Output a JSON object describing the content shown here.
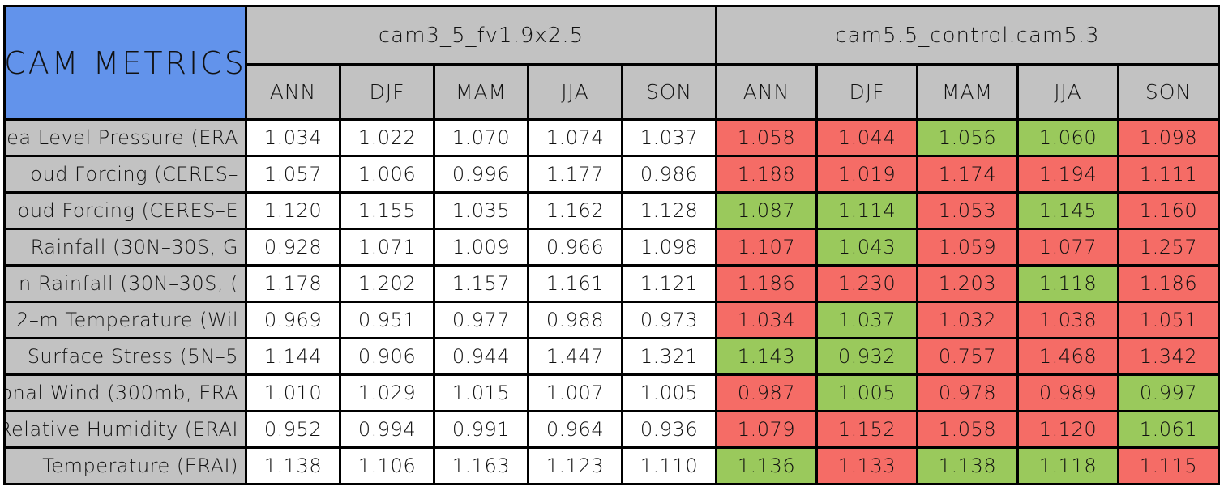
{
  "chart_data": {
    "type": "table",
    "title": "CAM METRICS",
    "season_labels": [
      "ANN",
      "DJF",
      "MAM",
      "JJA",
      "SON"
    ],
    "models": [
      {
        "name": "cam3_5_fv1.9x2.5",
        "seasons": [
          "ANN",
          "DJF",
          "MAM",
          "JJA",
          "SON"
        ]
      },
      {
        "name": "cam5.5_control.cam5.3",
        "seasons": [
          "ANN",
          "DJF",
          "MAM",
          "JJA",
          "SON"
        ]
      }
    ],
    "rows": [
      {
        "label": "ea Level Pressure (ERA",
        "model1": [
          "1.034",
          "1.022",
          "1.070",
          "1.074",
          "1.037"
        ],
        "model2": [
          "1.058",
          "1.044",
          "1.056",
          "1.060",
          "1.098"
        ],
        "model2_flags": [
          "worse",
          "worse",
          "better",
          "better",
          "worse"
        ]
      },
      {
        "label": "oud Forcing (CERES–",
        "model1": [
          "1.057",
          "1.006",
          "0.996",
          "1.177",
          "0.986"
        ],
        "model2": [
          "1.188",
          "1.019",
          "1.174",
          "1.194",
          "1.111"
        ],
        "model2_flags": [
          "worse",
          "worse",
          "worse",
          "worse",
          "worse"
        ]
      },
      {
        "label": "oud Forcing (CERES–E",
        "model1": [
          "1.120",
          "1.155",
          "1.035",
          "1.162",
          "1.128"
        ],
        "model2": [
          "1.087",
          "1.114",
          "1.053",
          "1.145",
          "1.160"
        ],
        "model2_flags": [
          "better",
          "better",
          "worse",
          "better",
          "worse"
        ]
      },
      {
        "label": "Rainfall (30N–30S, G",
        "model1": [
          "0.928",
          "1.071",
          "1.009",
          "0.966",
          "1.098"
        ],
        "model2": [
          "1.107",
          "1.043",
          "1.059",
          "1.077",
          "1.257"
        ],
        "model2_flags": [
          "worse",
          "better",
          "worse",
          "worse",
          "worse"
        ]
      },
      {
        "label": "n Rainfall (30N–30S, (",
        "model1": [
          "1.178",
          "1.202",
          "1.157",
          "1.161",
          "1.121"
        ],
        "model2": [
          "1.186",
          "1.230",
          "1.203",
          "1.118",
          "1.186"
        ],
        "model2_flags": [
          "worse",
          "worse",
          "worse",
          "better",
          "worse"
        ]
      },
      {
        "label": "2–m Temperature (Wil",
        "model1": [
          "0.969",
          "0.951",
          "0.977",
          "0.988",
          "0.973"
        ],
        "model2": [
          "1.034",
          "1.037",
          "1.032",
          "1.038",
          "1.051"
        ],
        "model2_flags": [
          "worse",
          "better",
          "worse",
          "worse",
          "worse"
        ]
      },
      {
        "label": "Surface Stress (5N–5",
        "model1": [
          "1.144",
          "0.906",
          "0.944",
          "1.447",
          "1.321"
        ],
        "model2": [
          "1.143",
          "0.932",
          "0.757",
          "1.468",
          "1.342"
        ],
        "model2_flags": [
          "better",
          "better",
          "worse",
          "worse",
          "worse"
        ]
      },
      {
        "label": "onal Wind (300mb, ERA",
        "model1": [
          "1.010",
          "1.029",
          "1.015",
          "1.007",
          "1.005"
        ],
        "model2": [
          "0.987",
          "1.005",
          "0.978",
          "0.989",
          "0.997"
        ],
        "model2_flags": [
          "worse",
          "better",
          "worse",
          "worse",
          "better"
        ]
      },
      {
        "label": "Relative Humidity (ERAI",
        "model1": [
          "0.952",
          "0.994",
          "0.991",
          "0.964",
          "0.936"
        ],
        "model2": [
          "1.079",
          "1.152",
          "1.058",
          "1.120",
          "1.061"
        ],
        "model2_flags": [
          "worse",
          "worse",
          "worse",
          "worse",
          "better"
        ]
      },
      {
        "label": "Temperature (ERAI)",
        "model1": [
          "1.138",
          "1.106",
          "1.163",
          "1.123",
          "1.110"
        ],
        "model2": [
          "1.136",
          "1.133",
          "1.138",
          "1.118",
          "1.115"
        ],
        "model2_flags": [
          "better",
          "worse",
          "better",
          "better",
          "worse"
        ]
      }
    ],
    "colors": {
      "header_blue": "#6293EB",
      "header_gray": "#C2C2C2",
      "worse_red": "#F56C66",
      "better_green": "#9AC95C",
      "model1_cell_white": "#FFFFFF",
      "border_black": "#000000"
    }
  }
}
